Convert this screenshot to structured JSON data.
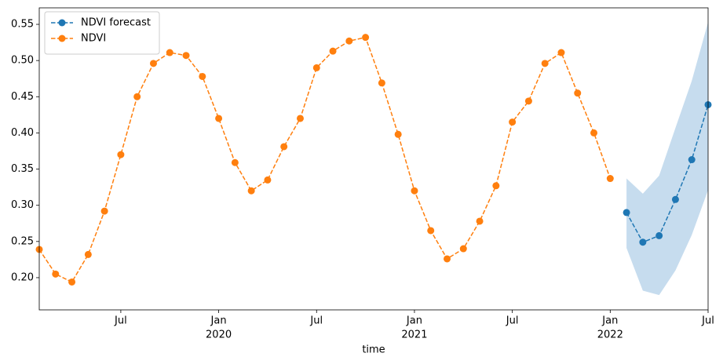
{
  "chart_data": {
    "type": "line",
    "x_label": "time",
    "legend": "upper left",
    "xlim": [
      "2019-02",
      "2022-07"
    ],
    "xticks": [
      {
        "value": "2019-07",
        "label": "Jul"
      },
      {
        "value": "2020-01",
        "label": "Jan",
        "sublabel": "2020"
      },
      {
        "value": "2020-07",
        "label": "Jul"
      },
      {
        "value": "2021-01",
        "label": "Jan",
        "sublabel": "2021"
      },
      {
        "value": "2021-07",
        "label": "Jul"
      },
      {
        "value": "2022-01",
        "label": "Jan",
        "sublabel": "2022"
      },
      {
        "value": "2022-07",
        "label": "Jul"
      }
    ],
    "ylim": [
      0.1555,
      0.5728
    ],
    "yticks": [
      {
        "value": 0.2,
        "label": "0.20"
      },
      {
        "value": 0.25,
        "label": "0.25"
      },
      {
        "value": 0.3,
        "label": "0.30"
      },
      {
        "value": 0.35,
        "label": "0.35"
      },
      {
        "value": 0.4,
        "label": "0.40"
      },
      {
        "value": 0.45,
        "label": "0.45"
      },
      {
        "value": 0.5,
        "label": "0.50"
      },
      {
        "value": 0.55,
        "label": "0.55"
      }
    ],
    "series": [
      {
        "name": "NDVI forecast",
        "color": "#1f77b4",
        "band_color": "#c6dcee",
        "x": [
          "2022-02",
          "2022-03",
          "2022-04",
          "2022-05",
          "2022-06",
          "2022-07"
        ],
        "values": [
          0.29,
          0.249,
          0.258,
          0.308,
          0.363,
          0.439
        ],
        "lower": [
          0.241,
          0.182,
          0.176,
          0.21,
          0.259,
          0.321
        ],
        "upper": [
          0.337,
          0.316,
          0.341,
          0.407,
          0.472,
          0.553
        ]
      },
      {
        "name": "NDVI",
        "color": "#ff7f0e",
        "x": [
          "2019-02",
          "2019-03",
          "2019-04",
          "2019-05",
          "2019-06",
          "2019-07",
          "2019-08",
          "2019-09",
          "2019-10",
          "2019-11",
          "2019-12",
          "2020-01",
          "2020-02",
          "2020-03",
          "2020-04",
          "2020-05",
          "2020-06",
          "2020-07",
          "2020-08",
          "2020-09",
          "2020-10",
          "2020-11",
          "2020-12",
          "2021-01",
          "2021-02",
          "2021-03",
          "2021-04",
          "2021-05",
          "2021-06",
          "2021-07",
          "2021-08",
          "2021-09",
          "2021-10",
          "2021-11",
          "2021-12",
          "2022-01"
        ],
        "values": [
          0.239,
          0.205,
          0.194,
          0.232,
          0.292,
          0.37,
          0.45,
          0.496,
          0.511,
          0.507,
          0.478,
          0.42,
          0.359,
          0.32,
          0.335,
          0.381,
          0.42,
          0.49,
          0.513,
          0.527,
          0.532,
          0.469,
          0.398,
          0.32,
          0.265,
          0.226,
          0.24,
          0.278,
          0.327,
          0.415,
          0.444,
          0.496,
          0.511,
          0.455,
          0.4,
          0.337
        ]
      }
    ]
  }
}
